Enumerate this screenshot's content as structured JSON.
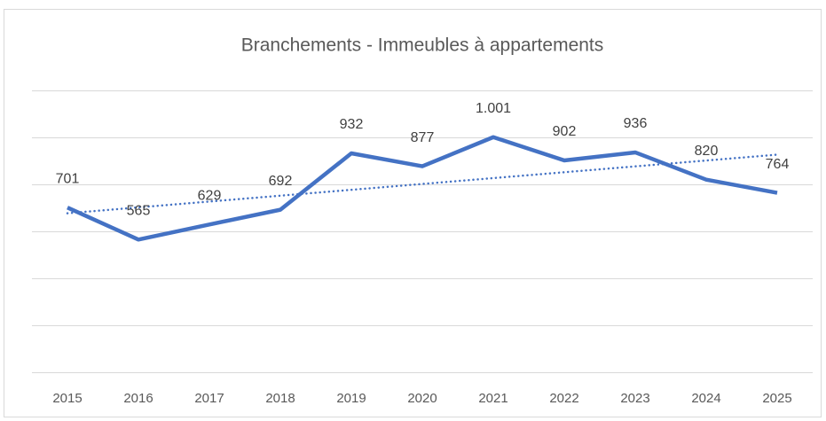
{
  "chart_data": {
    "type": "line",
    "title": "Branchements - Immeubles à appartements",
    "categories": [
      "2015",
      "2016",
      "2017",
      "2018",
      "2019",
      "2020",
      "2021",
      "2022",
      "2023",
      "2024",
      "2025"
    ],
    "series": [
      {
        "name": "Branchements",
        "color": "#4472c4",
        "values": [
          701,
          565,
          629,
          692,
          932,
          877,
          1001,
          902,
          936,
          820,
          764
        ],
        "value_labels": [
          "701",
          "565",
          "629",
          "692",
          "932",
          "877",
          "1.001",
          "902",
          "936",
          "820",
          "764"
        ]
      }
    ],
    "ylim": [
      0,
      1200
    ],
    "yticks": [
      0,
      200,
      400,
      600,
      800,
      1000,
      1200
    ],
    "grid": true,
    "trendline": "linear",
    "legend": false
  }
}
